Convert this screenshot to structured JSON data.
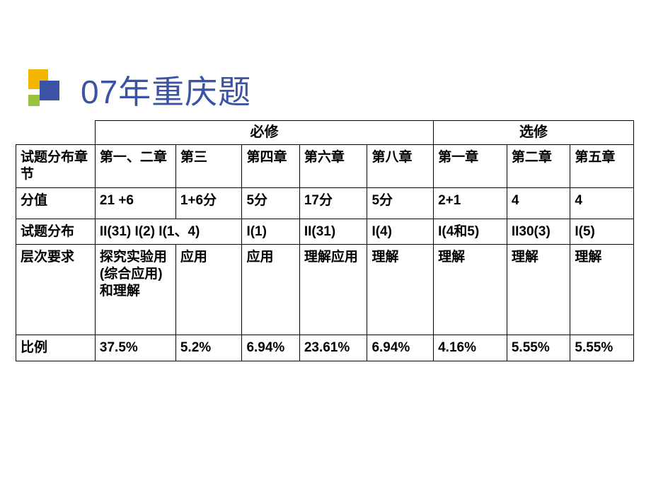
{
  "title": "07年重庆题",
  "groups": {
    "g1": "必修",
    "g2": "选修"
  },
  "row_labels": {
    "chapters": "试题分布章节",
    "scores": "分值",
    "distribution": "试题分布",
    "level": "层次要求",
    "ratio": "比例"
  },
  "headers": {
    "h1": "第一、二章",
    "h2": "第三",
    "h3": "第四章",
    "h4": "第六章",
    "h5": "第八章",
    "h6": "第一章",
    "h7": "第二章",
    "h8": "第五章"
  },
  "scores": {
    "s1": "21  +6",
    "s2": "1+6分",
    "s3": "5分",
    "s4": "17分",
    "s5": "5分",
    "s6": "2+1",
    "s7": "4",
    "s8": "4"
  },
  "distribution": {
    "d12": "II(31) I(2) I(1、4)",
    "d3": "I(1)",
    "d4": "II(31)",
    "d5": "I(4)",
    "d6": "I(4和5)",
    "d7": "II30(3)",
    "d8": "I(5)"
  },
  "level": {
    "l1": "探究实验用(综合应用)和理解",
    "l2": "应用",
    "l3": "应用",
    "l4": "理解应用",
    "l5": "理解",
    "l6": "理解",
    "l7": "理解",
    "l8": "理解"
  },
  "ratio": {
    "r1": "37.5%",
    "r2": "5.2%",
    "r3": "6.94%",
    "r4": "23.61%",
    "r5": "6.94%",
    "r6": "4.16%",
    "r7": "5.55%",
    "r8": "5.55%"
  },
  "colors": {
    "title": "#3a53a4",
    "border": "#000000",
    "text": "#000000",
    "background": "#ffffff",
    "icon_yellow": "#f2b600",
    "icon_blue": "#3a53a4",
    "icon_green": "#9bc23b"
  }
}
